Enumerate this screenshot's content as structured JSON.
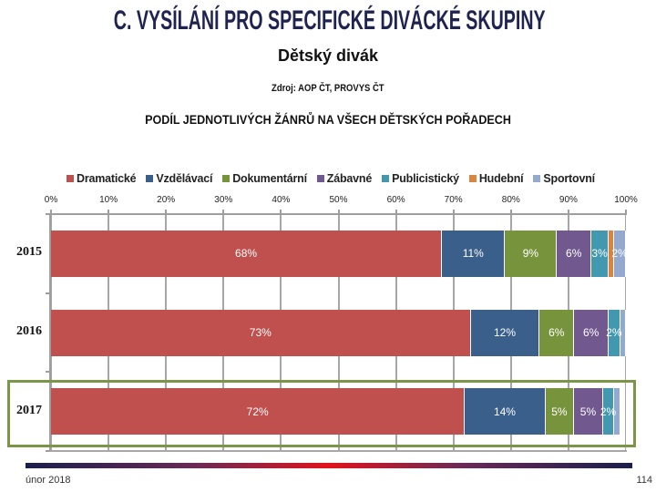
{
  "header": {
    "title": "C. VYSÍLÁNÍ PRO SPECIFICKÉ DIVÁCKÉ SKUPINY",
    "subtitle": "Dětský divák",
    "source": "Zdroj: AOP ČT, PROVYS ČT"
  },
  "chart_data": {
    "type": "bar",
    "orientation": "horizontal",
    "stacking": "percent",
    "title": "PODÍL JEDNOTLIVÝCH ŽÁNRŮ NA VŠECH DĚTSKÝCH POŘADECH",
    "xlabel": "",
    "ylabel": "",
    "xlim": [
      0,
      100
    ],
    "x_ticks": [
      "0%",
      "10%",
      "20%",
      "30%",
      "40%",
      "50%",
      "60%",
      "70%",
      "80%",
      "90%",
      "100%"
    ],
    "grid": true,
    "legend_position": "top",
    "categories": [
      "2015",
      "2016",
      "2017"
    ],
    "highlighted_category": "2017",
    "series": [
      {
        "name": "Dramatické",
        "color": "#c0504d",
        "values": [
          68,
          73,
          72
        ],
        "labels": [
          "68%",
          "73%",
          "72%"
        ]
      },
      {
        "name": "Vzdělávací",
        "color": "#3a5f8b",
        "values": [
          11,
          12,
          14
        ],
        "labels": [
          "11%",
          "12%",
          "14%"
        ]
      },
      {
        "name": "Dokumentární",
        "color": "#77933c",
        "values": [
          9,
          6,
          5
        ],
        "labels": [
          "9%",
          "6%",
          "5%"
        ]
      },
      {
        "name": "Zábavné",
        "color": "#71588f",
        "values": [
          6,
          6,
          5
        ],
        "labels": [
          "6%",
          "6%",
          "5%"
        ]
      },
      {
        "name": "Publicistický",
        "color": "#4198af",
        "values": [
          3,
          2,
          2
        ],
        "labels": [
          "3%",
          "2%",
          "2%"
        ]
      },
      {
        "name": "Hudební",
        "color": "#db843d",
        "values": [
          1,
          0,
          0
        ],
        "labels": [
          "",
          "",
          ""
        ]
      },
      {
        "name": "Sportovní",
        "color": "#93a9cf",
        "values": [
          2,
          1,
          1
        ],
        "labels": [
          "2%",
          "",
          ""
        ]
      }
    ]
  },
  "footer": {
    "date": "únor 2018",
    "page": "114"
  },
  "colors": {
    "title": "#1f2350",
    "highlight_box": "#7b9646",
    "gridline": "#a6a6a6"
  }
}
